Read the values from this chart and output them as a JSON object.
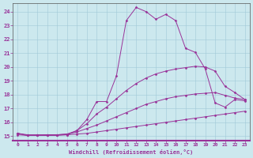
{
  "xlabel": "Windchill (Refroidissement éolien,°C)",
  "background_color": "#cce8ee",
  "line_color": "#993399",
  "xlim": [
    -0.5,
    23.5
  ],
  "ylim": [
    14.7,
    24.6
  ],
  "xticks": [
    0,
    1,
    2,
    3,
    4,
    5,
    6,
    7,
    8,
    9,
    10,
    11,
    12,
    13,
    14,
    15,
    16,
    17,
    18,
    19,
    20,
    21,
    22,
    23
  ],
  "yticks": [
    15,
    16,
    17,
    18,
    19,
    20,
    21,
    22,
    23,
    24
  ],
  "series": [
    {
      "x": [
        0,
        1,
        2,
        3,
        4,
        5,
        6,
        7,
        8,
        9,
        10,
        11,
        12,
        13,
        14,
        15,
        16,
        17,
        18,
        19,
        20,
        21,
        22,
        23
      ],
      "y": [
        15.1,
        15.05,
        15.05,
        15.05,
        15.05,
        15.1,
        15.15,
        15.2,
        15.3,
        15.4,
        15.5,
        15.6,
        15.7,
        15.8,
        15.9,
        16.0,
        16.1,
        16.2,
        16.3,
        16.4,
        16.5,
        16.6,
        16.7,
        16.8
      ]
    },
    {
      "x": [
        0,
        1,
        2,
        3,
        4,
        5,
        6,
        7,
        8,
        9,
        10,
        11,
        12,
        13,
        14,
        15,
        16,
        17,
        18,
        19,
        20,
        21,
        22,
        23
      ],
      "y": [
        15.2,
        15.1,
        15.1,
        15.1,
        15.1,
        15.15,
        15.3,
        15.55,
        15.8,
        16.1,
        16.4,
        16.7,
        17.0,
        17.3,
        17.5,
        17.7,
        17.85,
        17.95,
        18.05,
        18.1,
        18.15,
        17.95,
        17.75,
        17.65
      ]
    },
    {
      "x": [
        0,
        1,
        2,
        3,
        4,
        5,
        6,
        7,
        8,
        9,
        10,
        11,
        12,
        13,
        14,
        15,
        16,
        17,
        18,
        19,
        20,
        21,
        22,
        23
      ],
      "y": [
        15.2,
        15.05,
        15.05,
        15.05,
        15.1,
        15.15,
        15.4,
        15.9,
        16.6,
        17.1,
        17.7,
        18.3,
        18.8,
        19.2,
        19.5,
        19.7,
        19.85,
        19.95,
        20.05,
        20.0,
        19.7,
        18.6,
        18.15,
        17.65
      ]
    },
    {
      "x": [
        0,
        1,
        2,
        3,
        4,
        5,
        6,
        7,
        8,
        9,
        10,
        11,
        12,
        13,
        14,
        15,
        16,
        17,
        18,
        19,
        20,
        21,
        22,
        23
      ],
      "y": [
        15.2,
        15.05,
        15.05,
        15.1,
        15.1,
        15.1,
        15.4,
        16.2,
        17.5,
        17.5,
        19.35,
        23.35,
        24.3,
        24.0,
        23.45,
        23.8,
        23.35,
        21.35,
        21.05,
        19.85,
        17.4,
        17.1,
        17.65,
        17.55
      ]
    }
  ]
}
